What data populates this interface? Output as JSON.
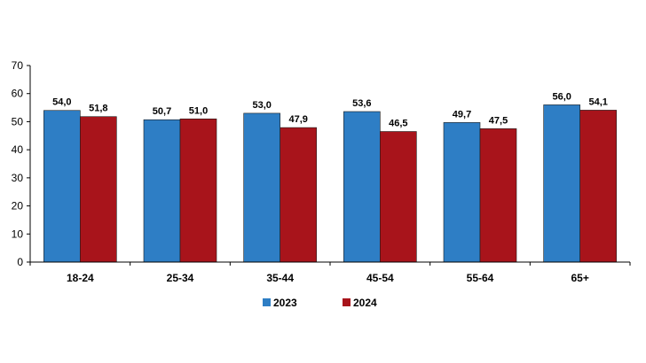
{
  "chart_data": {
    "type": "bar",
    "categories": [
      "18-24",
      "25-34",
      "35-44",
      "45-54",
      "55-64",
      "65+"
    ],
    "series": [
      {
        "name": "2023",
        "color": "#2E7EC5",
        "values": [
          54.0,
          50.7,
          53.0,
          53.6,
          49.7,
          56.0
        ],
        "labels": [
          "54,0",
          "50,7",
          "53,0",
          "53,6",
          "49,7",
          "56,0"
        ]
      },
      {
        "name": "2024",
        "color": "#A8141B",
        "values": [
          51.8,
          51.0,
          47.9,
          46.5,
          47.5,
          54.1
        ],
        "labels": [
          "51,8",
          "51,0",
          "47,9",
          "46,5",
          "47,5",
          "54,1"
        ]
      }
    ],
    "yticks": [
      "0",
      "10",
      "20",
      "30",
      "40",
      "50",
      "60",
      "70"
    ],
    "ylim": [
      0,
      70
    ],
    "title": "",
    "xlabel": "",
    "ylabel": "",
    "grid": false,
    "legend_position": "bottom"
  }
}
